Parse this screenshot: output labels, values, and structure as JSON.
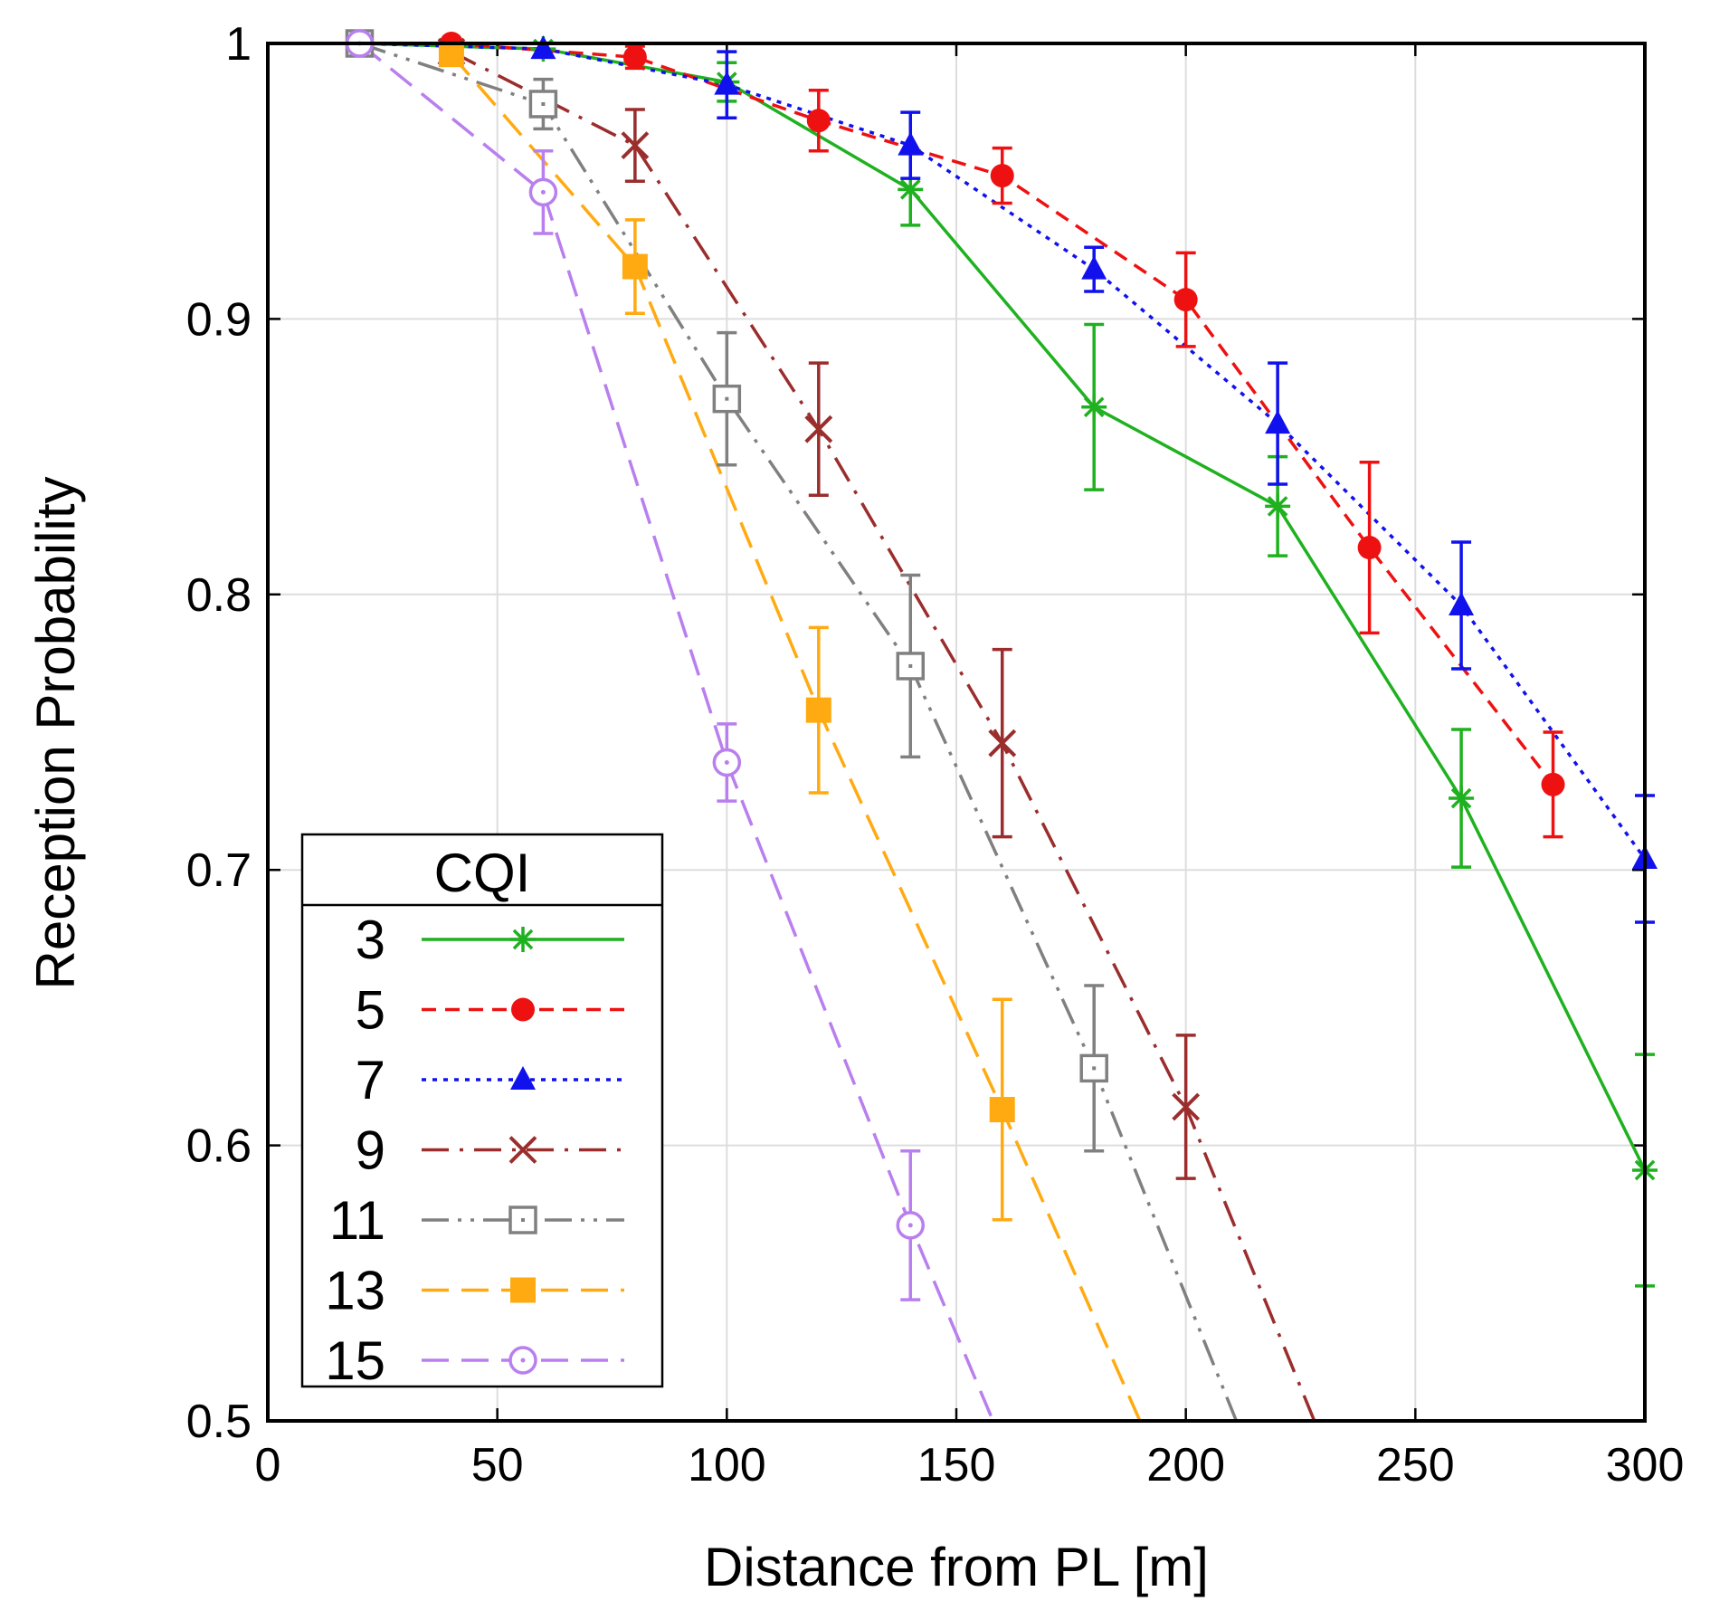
{
  "chart_data": {
    "type": "line",
    "title": "",
    "xlabel": "Distance from PL [m]",
    "ylabel": "Reception Probability",
    "xlim": [
      0,
      300
    ],
    "ylim": [
      0.5,
      1.0
    ],
    "xticks": [
      0,
      50,
      100,
      150,
      200,
      250,
      300
    ],
    "yticks": [
      0.5,
      0.6,
      0.7,
      0.8,
      0.9,
      1
    ],
    "xtick_labels": [
      "0",
      "50",
      "100",
      "150",
      "200",
      "250",
      "300"
    ],
    "ytick_labels": [
      "0.5",
      "0.6",
      "0.7",
      "0.8",
      "0.9",
      "1"
    ],
    "grid": true,
    "legend": {
      "title": "CQI",
      "position": "bottom-left"
    },
    "series": [
      {
        "name": "3",
        "color": "#1fb11f",
        "marker": "star",
        "dash": "solid",
        "points": [
          {
            "x": 20,
            "y": 1.0,
            "err": 0.002
          },
          {
            "x": 40,
            "y": 0.999,
            "err": 0.002
          },
          {
            "x": 60,
            "y": 0.998,
            "err": 0.003
          },
          {
            "x": 100,
            "y": 0.986,
            "err": 0.007
          },
          {
            "x": 140,
            "y": 0.947,
            "err": 0.013
          },
          {
            "x": 180,
            "y": 0.868,
            "err": 0.03
          },
          {
            "x": 220,
            "y": 0.832,
            "err": 0.018
          },
          {
            "x": 260,
            "y": 0.726,
            "err": 0.025
          },
          {
            "x": 300,
            "y": 0.591,
            "err": 0.042
          }
        ]
      },
      {
        "name": "5",
        "color": "#ee1111",
        "marker": "filled-circle",
        "dash": "dashed",
        "points": [
          {
            "x": 40,
            "y": 1.0,
            "err": 0.002
          },
          {
            "x": 80,
            "y": 0.995,
            "err": 0.004
          },
          {
            "x": 120,
            "y": 0.972,
            "err": 0.011
          },
          {
            "x": 160,
            "y": 0.952,
            "err": 0.01
          },
          {
            "x": 200,
            "y": 0.907,
            "err": 0.017
          },
          {
            "x": 240,
            "y": 0.817,
            "err": 0.031
          },
          {
            "x": 280,
            "y": 0.731,
            "err": 0.019
          }
        ]
      },
      {
        "name": "7",
        "color": "#1111ee",
        "marker": "filled-triangle",
        "dash": "dotted",
        "points": [
          {
            "x": 20,
            "y": 1.0,
            "err": 0.002
          },
          {
            "x": 60,
            "y": 0.998,
            "err": 0.003
          },
          {
            "x": 100,
            "y": 0.985,
            "err": 0.012
          },
          {
            "x": 140,
            "y": 0.963,
            "err": 0.012
          },
          {
            "x": 180,
            "y": 0.918,
            "err": 0.008
          },
          {
            "x": 220,
            "y": 0.862,
            "err": 0.022
          },
          {
            "x": 260,
            "y": 0.796,
            "err": 0.023
          },
          {
            "x": 300,
            "y": 0.704,
            "err": 0.023
          }
        ]
      },
      {
        "name": "9",
        "color": "#9b2d2d",
        "marker": "x",
        "dash": "dash-dot",
        "points": [
          {
            "x": 40,
            "y": 0.997,
            "err": 0.003
          },
          {
            "x": 80,
            "y": 0.963,
            "err": 0.013
          },
          {
            "x": 120,
            "y": 0.86,
            "err": 0.024
          },
          {
            "x": 160,
            "y": 0.746,
            "err": 0.034
          },
          {
            "x": 200,
            "y": 0.614,
            "err": 0.026
          }
        ],
        "trend_end": {
          "x": 228,
          "y": 0.5
        }
      },
      {
        "name": "11",
        "color": "#808080",
        "marker": "open-square",
        "dash": "dash-dot-dot",
        "points": [
          {
            "x": 20,
            "y": 1.0,
            "err": 0.002
          },
          {
            "x": 60,
            "y": 0.978,
            "err": 0.009
          },
          {
            "x": 100,
            "y": 0.871,
            "err": 0.024
          },
          {
            "x": 140,
            "y": 0.774,
            "err": 0.033
          },
          {
            "x": 180,
            "y": 0.628,
            "err": 0.03
          }
        ],
        "trend_end": {
          "x": 211,
          "y": 0.5
        }
      },
      {
        "name": "13",
        "color": "#ffaa11",
        "marker": "filled-square",
        "dash": "long-dash",
        "points": [
          {
            "x": 40,
            "y": 0.996,
            "err": 0.003
          },
          {
            "x": 80,
            "y": 0.919,
            "err": 0.017
          },
          {
            "x": 120,
            "y": 0.758,
            "err": 0.03
          },
          {
            "x": 160,
            "y": 0.613,
            "err": 0.04
          }
        ],
        "trend_end": {
          "x": 190,
          "y": 0.5
        }
      },
      {
        "name": "15",
        "color": "#b97fee",
        "marker": "open-circle",
        "dash": "long-dash",
        "points": [
          {
            "x": 20,
            "y": 1.0,
            "err": 0.002
          },
          {
            "x": 60,
            "y": 0.946,
            "err": 0.015
          },
          {
            "x": 100,
            "y": 0.739,
            "err": 0.014
          },
          {
            "x": 140,
            "y": 0.571,
            "err": 0.027
          }
        ],
        "trend_end": {
          "x": 158,
          "y": 0.5
        }
      }
    ]
  }
}
